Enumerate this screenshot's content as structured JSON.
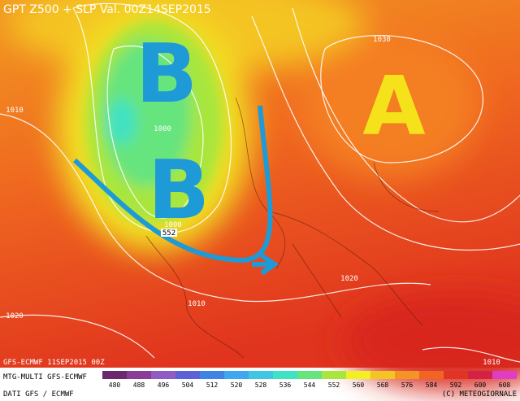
{
  "header": {
    "title": "GPT Z500 + SLP Val. 00Z14SEP2015"
  },
  "map": {
    "lows": [
      "B",
      "B"
    ],
    "highs": [
      "A"
    ],
    "isobar_labels": [
      "1030",
      "1010",
      "1000",
      "1000",
      "552",
      "1020",
      "1010",
      "1020",
      "1010"
    ]
  },
  "footer": {
    "run": "GFS-ECMWF 11SEP2015 00Z",
    "model": "MTG-MULTI GFS-ECMWF",
    "source": "DATI GFS / ECMWF",
    "copyright": "(C) METEOGIORNALE"
  },
  "colorbar": {
    "values": [
      480,
      488,
      496,
      504,
      512,
      520,
      528,
      536,
      544,
      552,
      560,
      568,
      576,
      584,
      592,
      600,
      608
    ],
    "colors": [
      "#6b2a6b",
      "#8a3c96",
      "#8f5cc4",
      "#5c62d6",
      "#3f84e4",
      "#3fa6f0",
      "#3fc6e4",
      "#3fe2c2",
      "#66e47e",
      "#a8e63e",
      "#f2f020",
      "#f4c422",
      "#f49422",
      "#f26422",
      "#e23422",
      "#d42246",
      "#e03cc4"
    ]
  }
}
